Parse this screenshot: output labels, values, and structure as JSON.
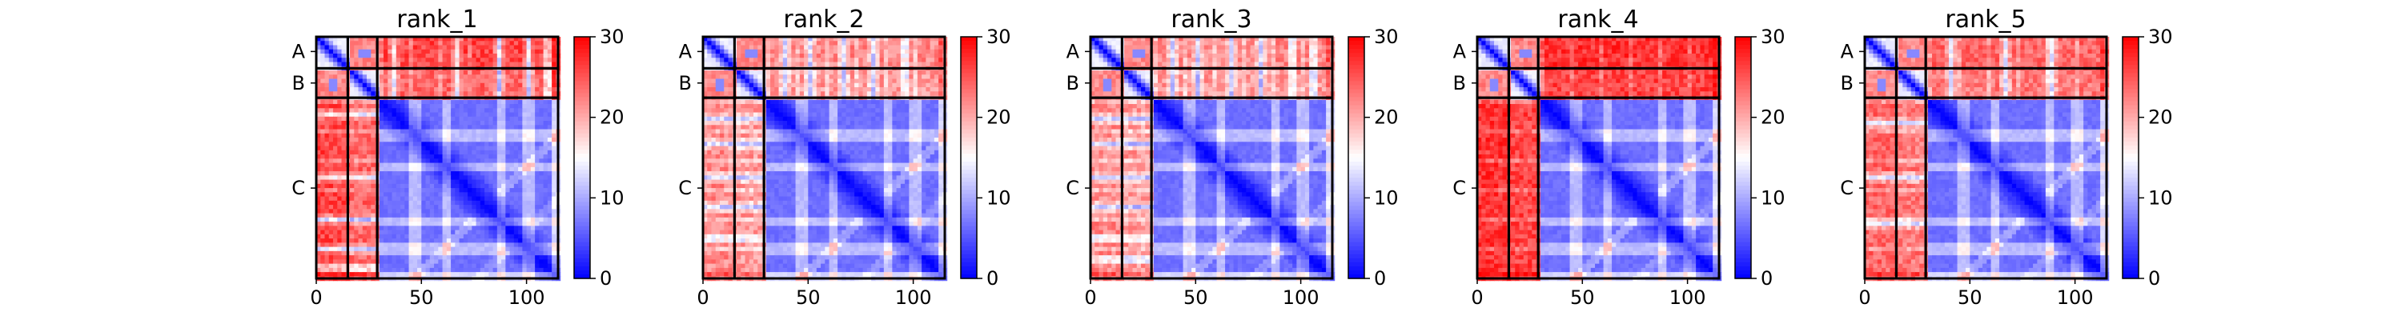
{
  "chart_data": [
    {
      "type": "heatmap",
      "title": "rank_1",
      "xlim": [
        0,
        115
      ],
      "ylim": [
        115,
        0
      ],
      "x_ticks": [
        0,
        50,
        100
      ],
      "chain_ticks": [
        {
          "label": "A",
          "pos": 7
        },
        {
          "label": "B",
          "pos": 22
        },
        {
          "label": "C",
          "pos": 72
        }
      ],
      "chain_boundaries": [
        15,
        29
      ],
      "colorbar": {
        "min": 0,
        "max": 30,
        "ticks": [
          0,
          10,
          20,
          30
        ]
      },
      "pattern": {
        "ab_gaps": [
          12,
          36,
          66,
          86,
          100,
          109
        ],
        "ac_level": 26,
        "bc_level": 24
      }
    },
    {
      "type": "heatmap",
      "title": "rank_2",
      "xlim": [
        0,
        115
      ],
      "ylim": [
        115,
        0
      ],
      "x_ticks": [
        0,
        50,
        100
      ],
      "chain_ticks": [
        {
          "label": "A",
          "pos": 7
        },
        {
          "label": "B",
          "pos": 22
        },
        {
          "label": "C",
          "pos": 72
        }
      ],
      "chain_boundaries": [
        15,
        29
      ],
      "colorbar": {
        "min": 0,
        "max": 30,
        "ticks": [
          0,
          10,
          20,
          30
        ]
      },
      "pattern": {
        "ab_gaps": [
          38,
          50,
          66,
          80,
          95
        ],
        "ac_level": 22,
        "bc_level": 21
      }
    },
    {
      "type": "heatmap",
      "title": "rank_3",
      "xlim": [
        0,
        115
      ],
      "ylim": [
        115,
        0
      ],
      "x_ticks": [
        0,
        50,
        100
      ],
      "chain_ticks": [
        {
          "label": "A",
          "pos": 7
        },
        {
          "label": "B",
          "pos": 22
        },
        {
          "label": "C",
          "pos": 72
        }
      ],
      "chain_boundaries": [
        15,
        29
      ],
      "colorbar": {
        "min": 0,
        "max": 30,
        "ticks": [
          0,
          10,
          20,
          30
        ]
      },
      "pattern": {
        "ab_gaps": [
          38,
          50,
          66,
          80,
          95,
          105
        ],
        "ac_level": 22,
        "bc_level": 21
      }
    },
    {
      "type": "heatmap",
      "title": "rank_4",
      "xlim": [
        0,
        115
      ],
      "ylim": [
        115,
        0
      ],
      "x_ticks": [
        0,
        50,
        100
      ],
      "chain_ticks": [
        {
          "label": "A",
          "pos": 7
        },
        {
          "label": "B",
          "pos": 22
        },
        {
          "label": "C",
          "pos": 72
        }
      ],
      "chain_boundaries": [
        15,
        29
      ],
      "colorbar": {
        "min": 0,
        "max": 30,
        "ticks": [
          0,
          10,
          20,
          30
        ]
      },
      "pattern": {
        "ab_gaps": [],
        "ac_level": 27,
        "bc_level": 26
      }
    },
    {
      "type": "heatmap",
      "title": "rank_5",
      "xlim": [
        0,
        115
      ],
      "ylim": [
        115,
        0
      ],
      "x_ticks": [
        0,
        50,
        100
      ],
      "chain_ticks": [
        {
          "label": "A",
          "pos": 7
        },
        {
          "label": "B",
          "pos": 22
        },
        {
          "label": "C",
          "pos": 72
        }
      ],
      "chain_boundaries": [
        15,
        29
      ],
      "colorbar": {
        "min": 0,
        "max": 30,
        "ticks": [
          0,
          10,
          20,
          30
        ]
      },
      "pattern": {
        "ab_gaps": [
          40,
          66,
          88
        ],
        "ac_level": 24,
        "bc_level": 23
      }
    }
  ],
  "colors": {
    "low": "#0000ff",
    "mid": "#ffffff",
    "high": "#ff0000",
    "boundary": "#000000"
  }
}
